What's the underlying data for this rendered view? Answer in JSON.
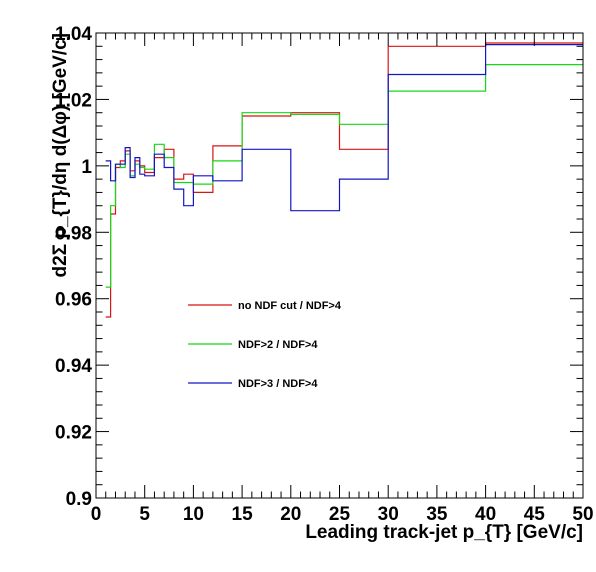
{
  "chart_data": {
    "type": "line",
    "step": true,
    "xlabel": "Leading track-jet p_{T} [GeV/c]",
    "ylabel": "d2Σ p_{T}/dη d(Δφ) [GeV/c]",
    "xlim": [
      0,
      50
    ],
    "ylim": [
      0.9,
      1.04
    ],
    "x_ticks": [
      0,
      5,
      10,
      15,
      20,
      25,
      30,
      35,
      40,
      45,
      50
    ],
    "x_tick_labels": [
      "0",
      "5",
      "10",
      "15",
      "20",
      "25",
      "30",
      "35",
      "40",
      "45",
      "50"
    ],
    "y_ticks": [
      0.9,
      0.92,
      0.94,
      0.96,
      0.98,
      1.0,
      1.02,
      1.04
    ],
    "y_tick_labels": [
      "0.9",
      "0.92",
      "0.94",
      "0.96",
      "0.98",
      "1",
      "1.02",
      "1.04"
    ],
    "grid": false,
    "legend_position": "center-left",
    "bin_edges": [
      1,
      1.5,
      2,
      2.5,
      3,
      3.5,
      4,
      4.5,
      5,
      6,
      7,
      8,
      9,
      10,
      12,
      15,
      20,
      25,
      30,
      40,
      50
    ],
    "series": [
      {
        "name": "no NDF cut / NDF>4",
        "color": "#d81515",
        "values": [
          0.9545,
          0.9855,
          0.9995,
          1.0015,
          1.0045,
          0.9985,
          1.0015,
          1.0,
          0.998,
          1.0025,
          1.005,
          0.996,
          0.9975,
          0.992,
          1.006,
          1.015,
          1.016,
          1.005,
          1.036,
          1.037
        ]
      },
      {
        "name": "NDF>2 / NDF>4",
        "color": "#16d816",
        "values": [
          0.9635,
          0.988,
          1.0005,
          0.9995,
          1.0035,
          0.997,
          1.0005,
          0.9995,
          0.999,
          1.0065,
          1.0025,
          0.995,
          0.995,
          0.9945,
          1.0015,
          1.016,
          1.0155,
          1.0125,
          1.0225,
          1.0305
        ]
      },
      {
        "name": "NDF>3 / NDF>4",
        "color": "#1515c8",
        "values": [
          1.0015,
          0.9955,
          1.0005,
          1.0005,
          1.0055,
          0.9965,
          1.0025,
          0.9975,
          0.997,
          1.0035,
          0.9995,
          0.993,
          0.988,
          0.997,
          0.9955,
          1.005,
          0.9865,
          0.996,
          1.0275,
          1.0365
        ]
      }
    ]
  }
}
